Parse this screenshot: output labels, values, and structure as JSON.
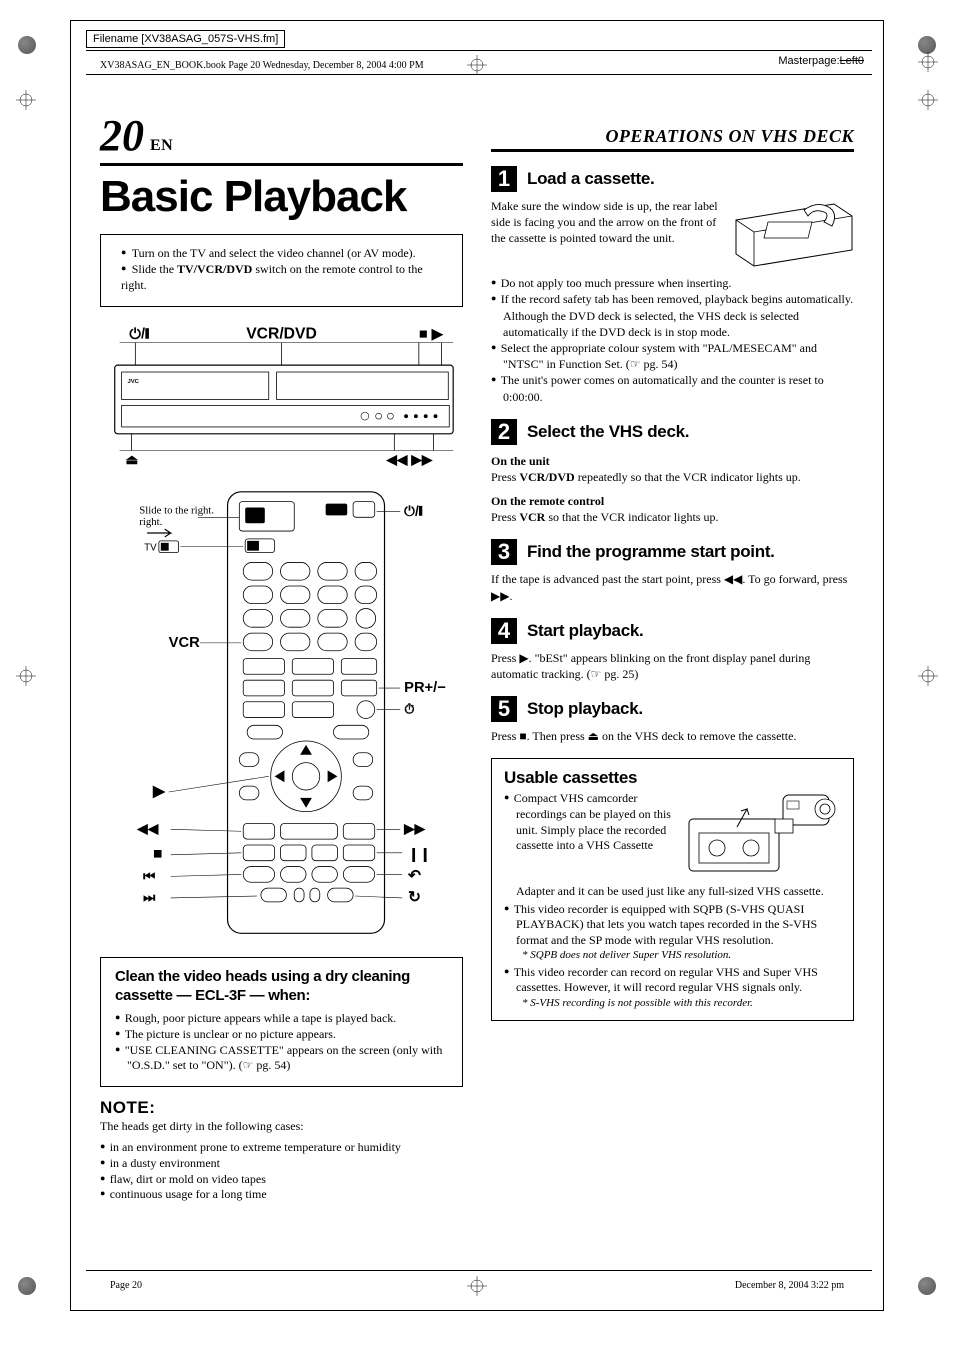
{
  "meta": {
    "filename_label": "Filename [XV38ASAG_057S-VHS.fm]",
    "bookline": "XV38ASAG_EN_BOOK.book  Page 20  Wednesday, December 8, 2004  4:00 PM",
    "masterpage_label": "Masterpage:",
    "masterpage_value": "Left0",
    "footer_left": "Page 20",
    "footer_right": "December 8, 2004 3:22 pm"
  },
  "left": {
    "page_number": "20",
    "page_lang": "EN",
    "title": "Basic Playback",
    "intro": [
      "Turn on the TV and select the video channel (or AV mode).",
      "Slide the <b>TV/VCR/DVD</b> switch on the remote control to the right."
    ],
    "unit_diagram": {
      "top_labels": {
        "power": "⏻/❙",
        "vcr_dvd": "VCR/DVD",
        "stop_play": "■ ▶"
      },
      "bottom_labels": {
        "eject": "⏏",
        "rew_ff": "◀◀ ▶▶"
      }
    },
    "remote_diagram": {
      "slide_text": "Slide to the right.",
      "labels": {
        "tv": "TV",
        "vcr": "VCR",
        "power": "⏻/❙",
        "pr": "PR+/−",
        "timer": "⏱"
      },
      "transport": {
        "play": "▶",
        "rew": "◀◀",
        "ff": "▶▶",
        "stop": "■",
        "pause": "❙❙",
        "prev": "⏮",
        "next": "⏭",
        "back": "↶",
        "loop": "↻"
      }
    },
    "clean": {
      "title": "Clean the video heads using a dry cleaning cassette — ECL-3F — when:",
      "items": [
        "Rough, poor picture appears while a tape is played back.",
        "The picture is unclear or no picture appears.",
        "\"USE CLEANING CASSETTE\" appears on the screen (only with \"O.S.D.\" set to \"ON\"). (☞ pg. 54)"
      ]
    },
    "note": {
      "head": "NOTE",
      "lead": "The heads get dirty in the following cases:",
      "items": [
        "in an environment prone to extreme temperature or humidity",
        "in a dusty environment",
        "flaw, dirt or mold on video tapes",
        "continuous usage for a long time"
      ]
    }
  },
  "right": {
    "section": "OPERATIONS ON VHS DECK",
    "steps": [
      {
        "num": "1",
        "label": "Load a cassette.",
        "body_intro": "Make sure the window side is up, the rear label side is facing you and the arrow on the front of the cassette is pointed toward the unit.",
        "items": [
          "Do not apply too much pressure when inserting.",
          "If the record safety tab has been removed, playback begins automatically. Although the DVD deck is selected, the VHS deck is selected automatically if the DVD deck is in stop mode.",
          "Select the appropriate colour system with \"PAL/MESECAM\" and \"NTSC\" in Function Set. (☞ pg. 54)",
          "The unit's power comes on automatically and the counter is reset to 0:00:00."
        ]
      },
      {
        "num": "2",
        "label": "Select the VHS deck.",
        "sub1": "On the unit",
        "sub1_text": "Press <b>VCR/DVD</b> repeatedly so that the VCR indicator lights up.",
        "sub2": "On the remote control",
        "sub2_text": "Press <b>VCR</b> so that the VCR indicator lights up."
      },
      {
        "num": "3",
        "label": "Find the programme start point.",
        "text": "If the tape is advanced past the start point, press ◀◀. To go forward, press ▶▶."
      },
      {
        "num": "4",
        "label": "Start playback.",
        "text": "Press ▶. \"bESt\" appears blinking on the front display panel during automatic tracking. (☞ pg. 25)"
      },
      {
        "num": "5",
        "label": "Stop playback.",
        "text": "Press ■. Then press ⏏ on the VHS deck to remove the cassette."
      }
    ],
    "usable": {
      "title": "Usable cassettes",
      "lead": "Compact VHS camcorder recordings can be played on this unit. Simply place the recorded cassette into a VHS Cassette",
      "lead_tail": "Adapter and it can be used just like any full-sized VHS cassette.",
      "items": [
        {
          "text": "This video recorder is equipped with SQPB (S-VHS QUASI PLAYBACK) that lets you watch tapes recorded in the S-VHS format and the SP mode with regular VHS resolution.",
          "note": "* SQPB does not deliver Super VHS resolution."
        },
        {
          "text": "This video recorder can record on regular VHS and Super VHS cassettes. However, it will record regular VHS signals only.",
          "note": "* S-VHS recording is not possible with this recorder."
        }
      ]
    }
  },
  "style": {
    "text_color": "#000000",
    "background": "#ffffff",
    "accent_block": "#000000"
  }
}
